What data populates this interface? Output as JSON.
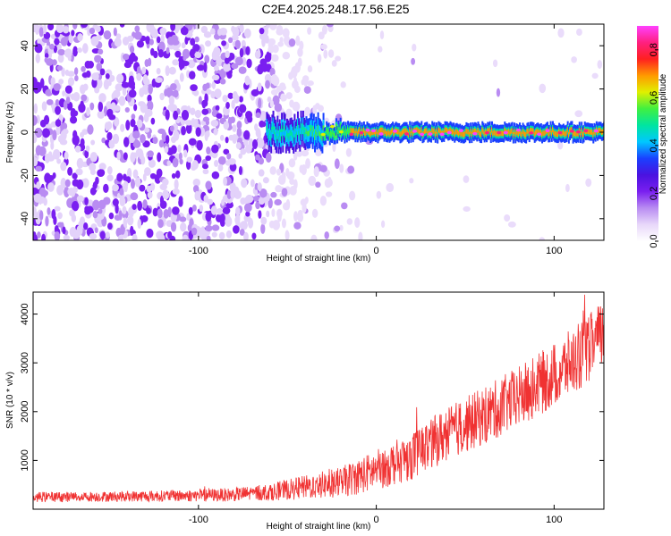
{
  "title": "C2E4.2025.248.17.56.E25",
  "colors": {
    "snr_line": "#f03232",
    "spectral_cmap": [
      "#ffffff",
      "#e8d8fa",
      "#b98cf2",
      "#7a1ff0",
      "#4a12e0",
      "#1a40ff",
      "#00c8ff",
      "#00e5a0",
      "#40f040",
      "#e0f000",
      "#ff9a00",
      "#ff2020",
      "#ff2080",
      "#ff40ff"
    ]
  },
  "chart_data": [
    {
      "type": "heatmap",
      "name": "spectrogram",
      "xlabel": "Height of straight line (km)",
      "ylabel": "Frequency (Hz)",
      "xlim": [
        -193,
        128
      ],
      "ylim": [
        -50,
        50
      ],
      "xticks": [
        -100,
        0,
        100
      ],
      "xtick_labels": [
        "-100",
        "0",
        "100"
      ],
      "yticks": [
        -40,
        -20,
        0,
        20,
        40
      ],
      "ytick_labels": [
        "-40",
        "-20",
        "0",
        "20",
        "40"
      ],
      "colorbar": {
        "label": "Normalized spectral amplitude",
        "range": [
          0,
          0.9
        ],
        "ticks": [
          0,
          0.2,
          0.4,
          0.6,
          0.8
        ],
        "tick_labels": [
          "0.0",
          "0.2",
          "0.4",
          "0.6",
          "0.8"
        ]
      },
      "description_points": [
        {
          "x": -193,
          "band_center_hz": 0,
          "peak_amplitude": 0.15
        },
        {
          "x": -60,
          "band_center_hz": 0,
          "peak_amplitude": 0.35
        },
        {
          "x": -40,
          "band_center_hz": 3,
          "peak_amplitude": 0.4
        },
        {
          "x": -10,
          "band_center_hz": 1,
          "peak_amplitude": 0.9
        },
        {
          "x": 50,
          "band_center_hz": 1,
          "peak_amplitude": 0.85
        },
        {
          "x": 128,
          "band_center_hz": 1,
          "peak_amplitude": 0.9
        }
      ]
    },
    {
      "type": "line",
      "name": "snr",
      "xlabel": "Height of straight line (km)",
      "ylabel": "SNR (10 * v/v)",
      "xlim": [
        -193,
        128
      ],
      "ylim": [
        0,
        4450
      ],
      "xticks": [
        -100,
        0,
        100
      ],
      "xtick_labels": [
        "-100",
        "0",
        "100"
      ],
      "yticks": [
        1000,
        2000,
        3000,
        4000
      ],
      "ytick_labels": [
        "1000",
        "2000",
        "3000",
        "4000"
      ],
      "series": [
        {
          "x": [
            -193,
            -150,
            -100,
            -80,
            -60,
            -40,
            -20,
            0,
            20,
            40,
            60,
            80,
            100,
            115,
            128
          ],
          "y": [
            250,
            260,
            280,
            300,
            350,
            450,
            550,
            800,
            1100,
            1550,
            1900,
            2300,
            2750,
            3150,
            3600
          ],
          "noise_amplitude": [
            150,
            150,
            180,
            200,
            250,
            350,
            450,
            600,
            700,
            800,
            850,
            900,
            950,
            1000,
            1000
          ]
        }
      ]
    }
  ]
}
